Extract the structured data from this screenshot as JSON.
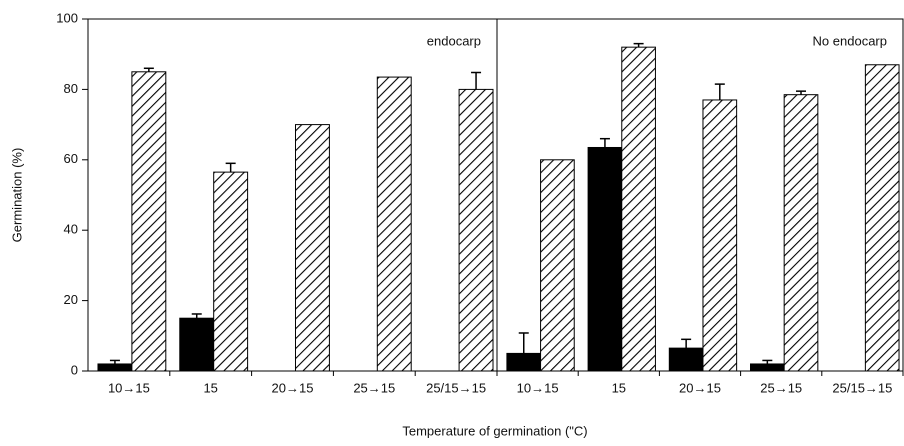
{
  "chart_data": [
    {
      "type": "bar",
      "annotation": "endocarp",
      "ylabel": "Germination (%)",
      "xlabel": "Temperature of germination (\"C)",
      "categories": [
        "10→15",
        "15",
        "20→15",
        "25→15",
        "25/15→15"
      ],
      "series": [
        {
          "color": "#000000",
          "values": [
            2,
            15,
            0,
            0,
            0
          ],
          "errors": [
            1,
            1.2,
            null,
            null,
            null
          ]
        },
        {
          "color": "#000000",
          "pattern": "hatch",
          "values": [
            85,
            56.5,
            70,
            83.5,
            80
          ],
          "errors": [
            1,
            2.5,
            null,
            null,
            4.8
          ]
        }
      ],
      "ylim": [
        0,
        100
      ],
      "yticks": [
        0,
        20,
        40,
        60,
        80,
        100
      ]
    },
    {
      "type": "bar",
      "annotation": "No endocarp",
      "categories": [
        "10→15",
        "15",
        "20→15",
        "25→15",
        "25/15→15"
      ],
      "series": [
        {
          "color": "#000000",
          "values": [
            5,
            63.5,
            6.5,
            2,
            0
          ],
          "errors": [
            5.8,
            2.5,
            2.5,
            1,
            null
          ]
        },
        {
          "color": "#000000",
          "pattern": "hatch",
          "values": [
            60,
            92,
            77,
            78.5,
            87
          ],
          "errors": [
            null,
            1,
            4.5,
            1,
            null
          ]
        }
      ],
      "ylim": [
        0,
        100
      ]
    }
  ]
}
